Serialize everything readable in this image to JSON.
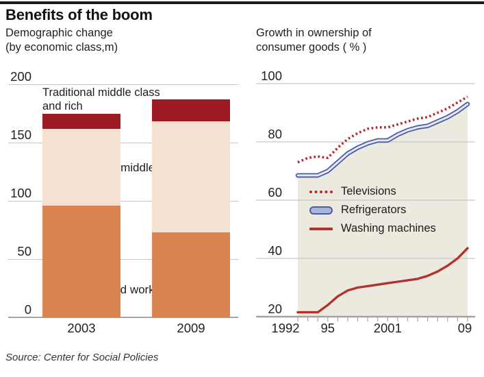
{
  "header": {
    "title": "Benefits of the boom"
  },
  "left_chart": {
    "subtitle_line1": "Demographic change",
    "subtitle_line2": "(by economic class,m)",
    "annotations": {
      "trad_line1": "Traditional middle class",
      "trad_line2": "and rich"
    }
  },
  "right_chart": {
    "subtitle_line1": "Growth in ownership of",
    "subtitle_line2": "consumer goods ( % )"
  },
  "source": "Source: Center for Social Policies",
  "colors": {
    "top_rule": "#1a1a1a",
    "gridline": "#c6c6c6",
    "axis": "#a2a2a2",
    "area_fill": "#eceadf"
  },
  "chart_data": [
    {
      "type": "bar",
      "stacked": true,
      "title": "Demographic change (by economic class, m)",
      "categories": [
        "2003",
        "2009"
      ],
      "series": [
        {
          "name": "Poor and working class",
          "values": [
            96,
            73
          ],
          "color": "#db8351"
        },
        {
          "name": "New middle class",
          "values": [
            66,
            95
          ],
          "color": "#f6e0d2"
        },
        {
          "name": "Traditional middle class and rich",
          "values": [
            13,
            19
          ],
          "color": "#9e1b23"
        }
      ],
      "ylim": [
        0,
        200
      ],
      "yticks": [
        0,
        50,
        100,
        150,
        200
      ],
      "grid": true,
      "legend_position": "in-plot text labels"
    },
    {
      "type": "line",
      "title": "Growth in ownership of consumer goods (%)",
      "x": [
        1992,
        1993,
        1994,
        1995,
        1996,
        1997,
        1998,
        1999,
        2000,
        2001,
        2002,
        2003,
        2004,
        2005,
        2006,
        2007,
        2008,
        2009
      ],
      "series": [
        {
          "name": "Televisions",
          "style": "dotted",
          "color": "#c0232a",
          "values": [
            73,
            74.5,
            75,
            74.5,
            78,
            81,
            83,
            84.5,
            85,
            85,
            86,
            87,
            88,
            88.5,
            90,
            91.5,
            93.5,
            95.5
          ]
        },
        {
          "name": "Refrigerators",
          "style": "double-line",
          "color": "#4a5ba8",
          "inner_color": "#e6e9f2",
          "area_fill_below": "#eceadf",
          "values": [
            68.5,
            68.5,
            68.5,
            70,
            73,
            76,
            78,
            79.5,
            80.5,
            80.5,
            82.5,
            84,
            85,
            85.5,
            87,
            88.5,
            90.5,
            93
          ]
        },
        {
          "name": "Washing machines",
          "style": "solid",
          "color": "#b2332e",
          "values": [
            21.5,
            21.5,
            21.5,
            24,
            27,
            29,
            30,
            30.5,
            31,
            31.5,
            32,
            32.5,
            33,
            34,
            35.5,
            37.5,
            40,
            43.5
          ]
        }
      ],
      "ylim": [
        20,
        100
      ],
      "yticks": [
        20,
        40,
        60,
        80,
        100
      ],
      "xticks": [
        {
          "label": "1992",
          "year": 1992,
          "dx": -18
        },
        {
          "label": "95",
          "year": 1995,
          "dx": 0
        },
        {
          "label": "2001",
          "year": 2001,
          "dx": 0
        },
        {
          "label": "09",
          "year": 2009,
          "dx": -4
        }
      ],
      "grid": true,
      "legend_position": "inside-middle"
    }
  ]
}
